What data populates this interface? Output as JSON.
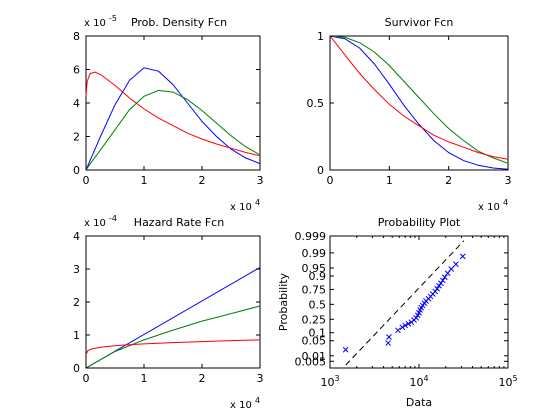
{
  "chart_data": [
    {
      "id": "pdf",
      "type": "line",
      "title": "Prob. Density Fcn",
      "xlim": [
        0,
        30000
      ],
      "ylim": [
        0,
        8
      ],
      "x_ticks": [
        "0",
        "1",
        "2",
        "3"
      ],
      "x_tick_values": [
        0,
        10000,
        20000,
        30000
      ],
      "y_ticks": [
        "0",
        "2",
        "4",
        "6",
        "8"
      ],
      "y_tick_values": [
        0,
        2,
        4,
        6,
        8
      ],
      "x_multiplier": "x 10",
      "x_exponent": "4",
      "y_multiplier": "x 10",
      "y_exponent": "-5",
      "grid": false,
      "series": [
        {
          "color": "#0000ff",
          "x": [
            0,
            1000,
            2500,
            5000,
            7500,
            10000,
            12500,
            15000,
            17500,
            20000,
            22500,
            25000,
            27500,
            30000
          ],
          "y": [
            0,
            0.8,
            2.0,
            3.9,
            5.35,
            6.1,
            5.9,
            5.1,
            4.0,
            2.9,
            2.0,
            1.25,
            0.72,
            0.38
          ]
        },
        {
          "color": "#008000",
          "x": [
            0,
            1000,
            2500,
            5000,
            7500,
            10000,
            12500,
            15000,
            17500,
            20000,
            22500,
            25000,
            27500,
            30000
          ],
          "y": [
            0,
            0.5,
            1.2,
            2.4,
            3.6,
            4.4,
            4.75,
            4.65,
            4.2,
            3.55,
            2.8,
            2.05,
            1.4,
            0.9
          ]
        },
        {
          "color": "#ff0000",
          "x": [
            0,
            200,
            700,
            1500,
            2500,
            5000,
            7500,
            10000,
            12500,
            15000,
            17500,
            20000,
            22500,
            25000,
            27500,
            30000
          ],
          "y": [
            4.4,
            5.3,
            5.75,
            5.85,
            5.7,
            5.05,
            4.3,
            3.65,
            3.1,
            2.65,
            2.2,
            1.85,
            1.55,
            1.3,
            1.05,
            0.85
          ]
        }
      ]
    },
    {
      "id": "survivor",
      "type": "line",
      "title": "Survivor Fcn",
      "xlim": [
        0,
        30000
      ],
      "ylim": [
        0,
        1
      ],
      "x_ticks": [
        "0",
        "1",
        "2",
        "3"
      ],
      "x_tick_values": [
        0,
        10000,
        20000,
        30000
      ],
      "y_ticks": [
        "0",
        "0.5",
        "1"
      ],
      "y_tick_values": [
        0,
        0.5,
        1
      ],
      "x_multiplier": "x 10",
      "x_exponent": "4",
      "grid": false,
      "series": [
        {
          "color": "#0000ff",
          "x": [
            0,
            2500,
            5000,
            7500,
            10000,
            12500,
            15000,
            17500,
            20000,
            22500,
            25000,
            27500,
            30000
          ],
          "y": [
            1,
            0.98,
            0.91,
            0.79,
            0.64,
            0.48,
            0.34,
            0.22,
            0.13,
            0.07,
            0.035,
            0.015,
            0.005
          ]
        },
        {
          "color": "#008000",
          "x": [
            0,
            2500,
            5000,
            7500,
            10000,
            12500,
            15000,
            17500,
            20000,
            22500,
            25000,
            27500,
            30000
          ],
          "y": [
            1,
            0.99,
            0.95,
            0.88,
            0.78,
            0.66,
            0.54,
            0.42,
            0.31,
            0.22,
            0.14,
            0.09,
            0.05
          ]
        },
        {
          "color": "#ff0000",
          "x": [
            0,
            2500,
            5000,
            7500,
            10000,
            12500,
            15000,
            17500,
            20000,
            22500,
            25000,
            27500,
            30000
          ],
          "y": [
            1,
            0.86,
            0.72,
            0.6,
            0.49,
            0.4,
            0.33,
            0.26,
            0.21,
            0.17,
            0.13,
            0.1,
            0.08
          ]
        }
      ]
    },
    {
      "id": "hazard",
      "type": "line",
      "title": "Hazard Rate Fcn",
      "xlim": [
        0,
        30000
      ],
      "ylim": [
        0,
        4
      ],
      "x_ticks": [
        "0",
        "1",
        "2",
        "3"
      ],
      "x_tick_values": [
        0,
        10000,
        20000,
        30000
      ],
      "y_ticks": [
        "0",
        "1",
        "2",
        "3",
        "4"
      ],
      "y_tick_values": [
        0,
        1,
        2,
        3,
        4
      ],
      "x_multiplier": "x 10",
      "x_exponent": "4",
      "y_multiplier": "x 10",
      "y_exponent": "-4",
      "grid": false,
      "series": [
        {
          "color": "#0000ff",
          "x": [
            0,
            30000
          ],
          "y": [
            0,
            3.05
          ]
        },
        {
          "color": "#008000",
          "x": [
            0,
            5000,
            10000,
            15000,
            20000,
            25000,
            30000
          ],
          "y": [
            0,
            0.5,
            0.85,
            1.15,
            1.42,
            1.65,
            1.88
          ]
        },
        {
          "color": "#ff0000",
          "x": [
            0,
            300,
            1000,
            3000,
            6000,
            10000,
            15000,
            20000,
            25000,
            30000
          ],
          "y": [
            0.4,
            0.52,
            0.58,
            0.64,
            0.69,
            0.73,
            0.77,
            0.8,
            0.83,
            0.85
          ]
        }
      ]
    },
    {
      "id": "probplot",
      "type": "scatter",
      "title": "Probability Plot",
      "xlabel": "Data",
      "ylabel": "Probability",
      "x_scale": "log",
      "xlim": [
        1000,
        100000
      ],
      "x_ticks": [
        {
          "base": "10",
          "exp": "3",
          "value": 1000
        },
        {
          "base": "10",
          "exp": "4",
          "value": 10000
        },
        {
          "base": "10",
          "exp": "5",
          "value": 100000
        }
      ],
      "y_ticks": [
        "0.005",
        "0.01",
        "0.05",
        "0.1",
        "0.25",
        "0.5",
        "0.75",
        "0.9",
        "0.95",
        "0.99",
        "0.999"
      ],
      "y_tick_values": [
        0.005,
        0.01,
        0.05,
        0.1,
        0.25,
        0.5,
        0.75,
        0.9,
        0.95,
        0.99,
        0.999
      ],
      "ylim_prob": [
        0.002,
        0.999
      ],
      "grid": false,
      "marker": "x",
      "marker_color": "#0000ff",
      "fit_line": {
        "color": "#000000",
        "style": "dashed",
        "x": [
          1500,
          32000
        ],
        "y": [
          0.003,
          0.998
        ]
      },
      "points": [
        {
          "x": 1500,
          "y": 0.02
        },
        {
          "x": 4500,
          "y": 0.04
        },
        {
          "x": 4600,
          "y": 0.07
        },
        {
          "x": 5800,
          "y": 0.12
        },
        {
          "x": 6500,
          "y": 0.15
        },
        {
          "x": 7000,
          "y": 0.17
        },
        {
          "x": 7600,
          "y": 0.19
        },
        {
          "x": 8200,
          "y": 0.21
        },
        {
          "x": 8800,
          "y": 0.24
        },
        {
          "x": 9300,
          "y": 0.27
        },
        {
          "x": 9700,
          "y": 0.31
        },
        {
          "x": 10000,
          "y": 0.35
        },
        {
          "x": 10300,
          "y": 0.4
        },
        {
          "x": 10600,
          "y": 0.44
        },
        {
          "x": 11000,
          "y": 0.48
        },
        {
          "x": 11500,
          "y": 0.52
        },
        {
          "x": 12000,
          "y": 0.56
        },
        {
          "x": 12800,
          "y": 0.6
        },
        {
          "x": 13500,
          "y": 0.64
        },
        {
          "x": 14300,
          "y": 0.68
        },
        {
          "x": 15200,
          "y": 0.72
        },
        {
          "x": 16000,
          "y": 0.76
        },
        {
          "x": 16800,
          "y": 0.8
        },
        {
          "x": 17600,
          "y": 0.83
        },
        {
          "x": 18500,
          "y": 0.86
        },
        {
          "x": 19500,
          "y": 0.89
        },
        {
          "x": 21000,
          "y": 0.92
        },
        {
          "x": 23000,
          "y": 0.945
        },
        {
          "x": 26000,
          "y": 0.965
        },
        {
          "x": 31000,
          "y": 0.985
        }
      ]
    }
  ]
}
